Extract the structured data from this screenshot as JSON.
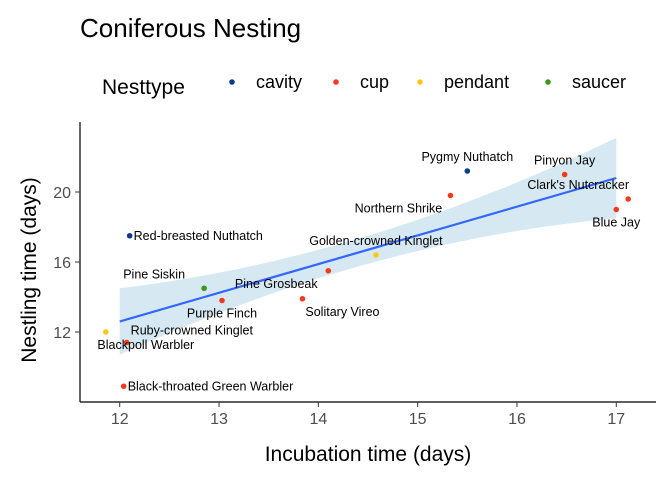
{
  "chart_data": {
    "type": "scatter",
    "title": "Coniferous Nesting",
    "xlabel": "Incubation time (days)",
    "ylabel": "Nestling time (days)",
    "xlim": [
      11.6,
      17.4
    ],
    "ylim": [
      8.0,
      24.0
    ],
    "x_ticks": [
      {
        "value": 12,
        "label": "12"
      },
      {
        "value": 13,
        "label": "13"
      },
      {
        "value": 14,
        "label": "14"
      },
      {
        "value": 15,
        "label": "15"
      },
      {
        "value": 16,
        "label": "16"
      },
      {
        "value": 17,
        "label": "17"
      }
    ],
    "y_ticks": [
      {
        "value": 12,
        "label": "12"
      },
      {
        "value": 16,
        "label": "16"
      },
      {
        "value": 20,
        "label": "20"
      }
    ],
    "grid": false,
    "legend": {
      "title": "Nesttype",
      "placement": "top",
      "items": [
        {
          "name": "cavity",
          "color": "#0c3a8c"
        },
        {
          "name": "cup",
          "color": "#f5391c"
        },
        {
          "name": "pendant",
          "color": "#fbc71a"
        },
        {
          "name": "saucer",
          "color": "#3e951c"
        }
      ]
    },
    "points": [
      {
        "label": "Pygmy Nuthatch",
        "x": 15.5,
        "y": 21.2,
        "nesttype": "cavity",
        "label_pos": "above"
      },
      {
        "label": "Red-breasted Nuthatch",
        "x": 12.1,
        "y": 17.5,
        "nesttype": "cavity",
        "label_pos": "right"
      },
      {
        "label": "Pinyon Jay",
        "x": 16.48,
        "y": 21.0,
        "nesttype": "cup",
        "label_pos": "above"
      },
      {
        "label": "Clark's Nutcracker",
        "x": 17.12,
        "y": 19.6,
        "nesttype": "cup",
        "label_pos": "above-left"
      },
      {
        "label": "Blue Jay",
        "x": 17.0,
        "y": 19.0,
        "nesttype": "cup",
        "label_pos": "below"
      },
      {
        "label": "Northern Shrike",
        "x": 15.33,
        "y": 19.8,
        "nesttype": "cup",
        "label_pos": "below-left"
      },
      {
        "label": "Pine Grosbeak",
        "x": 14.1,
        "y": 15.5,
        "nesttype": "cup",
        "label_pos": "below-left"
      },
      {
        "label": "Purple Finch",
        "x": 13.03,
        "y": 13.8,
        "nesttype": "cup",
        "label_pos": "below"
      },
      {
        "label": "Solitary Vireo",
        "x": 13.84,
        "y": 13.9,
        "nesttype": "cup",
        "label_pos": "below-right"
      },
      {
        "label": "Ruby-crowned Kinglet",
        "x": 12.07,
        "y": 11.4,
        "nesttype": "cup",
        "label_pos": "above-right"
      },
      {
        "label": "Black-throated Green Warbler",
        "x": 12.04,
        "y": 8.9,
        "nesttype": "cup",
        "label_pos": "right"
      },
      {
        "label": "Golden-crowned Kinglet",
        "x": 14.58,
        "y": 16.4,
        "nesttype": "pendant",
        "label_pos": "above"
      },
      {
        "label": "Blackpoll Warbler",
        "x": 11.86,
        "y": 12.0,
        "nesttype": "pendant",
        "label_pos": "below-right"
      },
      {
        "label": "Pine Siskin",
        "x": 12.85,
        "y": 14.5,
        "nesttype": "saucer",
        "label_pos": "above-left"
      }
    ],
    "regression": {
      "method": "lm",
      "line_color": "#3366ff",
      "band_color": "#d6e9f2",
      "x_start": 12.0,
      "y_start": 12.6,
      "x_end": 17.0,
      "y_end": 20.8,
      "ci_half_start": 1.9,
      "ci_half_mid": 0.8,
      "ci_half_end": 2.3,
      "x_mid": 14.5
    }
  }
}
